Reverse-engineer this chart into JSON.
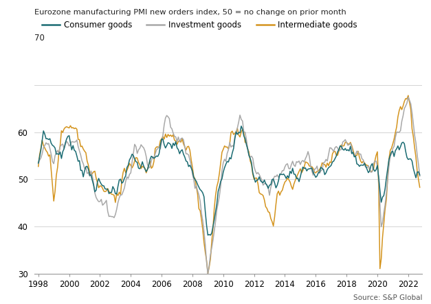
{
  "title": "Eurozone manufacturing PMI new orders index, 50 = no change on prior month",
  "source": "Source: S&P Global",
  "ylim": [
    30,
    70
  ],
  "yticks": [
    30,
    40,
    50,
    60,
    70
  ],
  "xlim_start": 1997.75,
  "xlim_end": 2022.92,
  "consumer_color": "#1a6b72",
  "investment_color": "#a8a8a8",
  "intermediate_color": "#d4941e",
  "legend_labels": [
    "Consumer goods",
    "Investment goods",
    "Intermediate goods"
  ],
  "xtick_years": [
    1998,
    2000,
    2002,
    2004,
    2006,
    2008,
    2010,
    2012,
    2014,
    2016,
    2018,
    2020,
    2022
  ],
  "line_width": 1.1
}
